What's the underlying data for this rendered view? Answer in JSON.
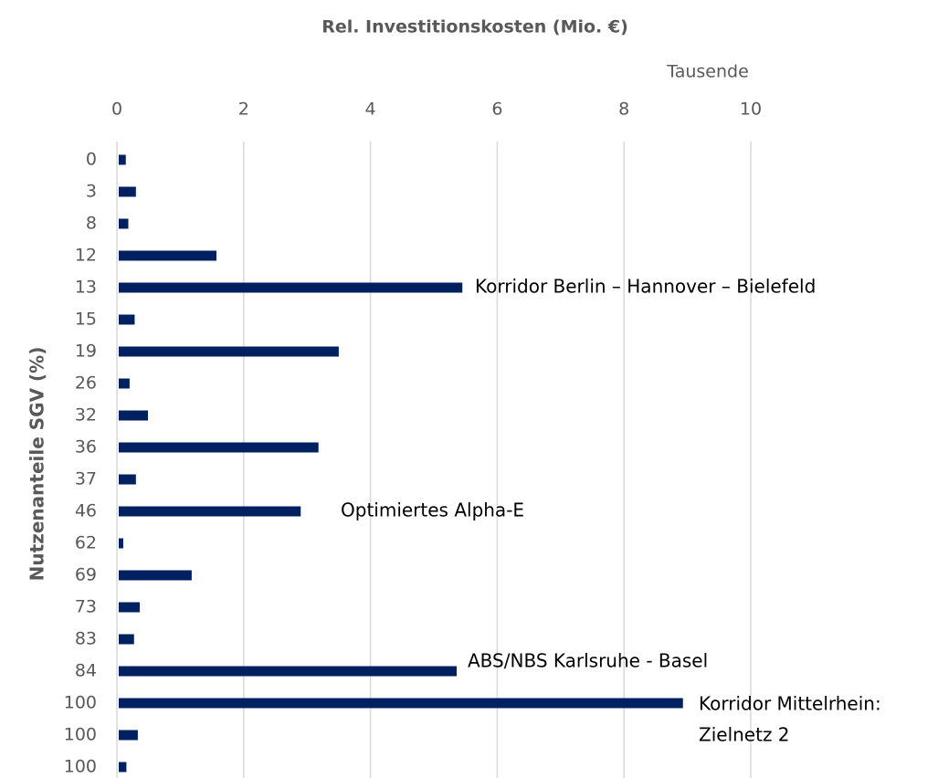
{
  "chart_data": {
    "type": "bar",
    "orientation": "horizontal",
    "x_axis_title": "Rel. Investitionskosten (Mio. €)",
    "x_unit_label": "Tausende",
    "y_axis_title": "Nutzenanteile SGV (%)",
    "categories": [
      "0",
      "3",
      "8",
      "12",
      "13",
      "15",
      "19",
      "26",
      "32",
      "36",
      "37",
      "46",
      "62",
      "69",
      "73",
      "83",
      "84",
      "100",
      "100",
      "100"
    ],
    "values": [
      0.14,
      0.3,
      0.18,
      1.57,
      5.45,
      0.28,
      3.5,
      0.2,
      0.49,
      3.18,
      0.3,
      2.9,
      0.1,
      1.18,
      0.36,
      0.27,
      5.36,
      8.93,
      0.33,
      0.15
    ],
    "color": "#002060",
    "xlim": [
      0,
      10
    ],
    "xticks": [
      0,
      2,
      4,
      6,
      8,
      10
    ],
    "grid": true,
    "annotations": [
      {
        "lines": [
          "Korridor Berlin – Hannover – Bielefeld"
        ]
      },
      {
        "lines": [
          "Optimiertes Alpha-E"
        ]
      },
      {
        "lines": [
          "ABS/NBS Karlsruhe - Basel"
        ]
      },
      {
        "lines": [
          "Korridor Mittelrhein:",
          "Zielnetz 2"
        ]
      }
    ]
  }
}
